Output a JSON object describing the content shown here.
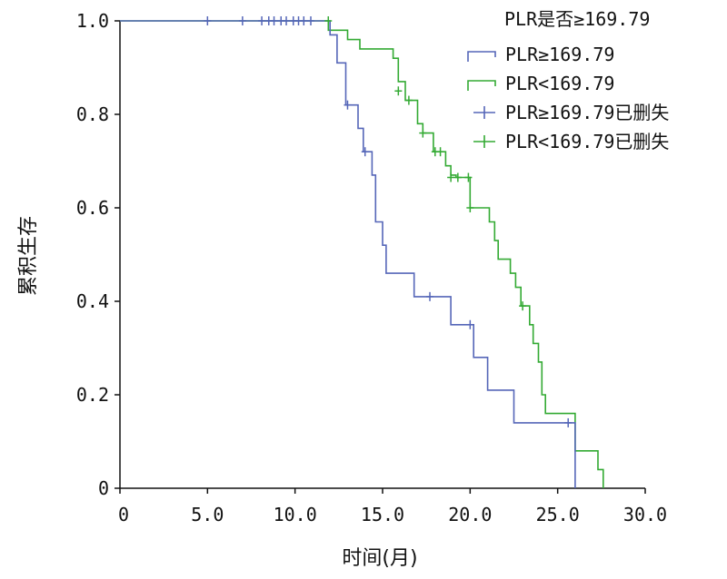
{
  "chart_data": {
    "type": "line",
    "subtype": "kaplan-meier step",
    "title": "",
    "xlabel": "时间(月)",
    "ylabel": "累积生存",
    "xlim": [
      0,
      30
    ],
    "ylim": [
      0,
      1
    ],
    "x_ticks": [
      0,
      5,
      10,
      15,
      20,
      25,
      30
    ],
    "x_tick_labels": [
      "0",
      "5.0",
      "10.0",
      "15.0",
      "20.0",
      "25.0",
      "30.0"
    ],
    "y_ticks": [
      0,
      0.2,
      0.4,
      0.6,
      0.8,
      1.0
    ],
    "y_tick_labels": [
      "0",
      "0.2",
      "0.4",
      "0.6",
      "0.8",
      "1.0"
    ],
    "grid": false,
    "legend": {
      "title": "PLR是否≥169.79",
      "placement": "top-right",
      "entries": [
        {
          "label": "PLR≥169.79",
          "kind": "line",
          "color": "#5566b8"
        },
        {
          "label": "PLR<169.79",
          "kind": "line",
          "color": "#33aa33"
        },
        {
          "label": "PLR≥169.79已删失",
          "kind": "censor",
          "color": "#5566b8"
        },
        {
          "label": "PLR<169.79已删失",
          "kind": "censor",
          "color": "#33aa33"
        }
      ]
    },
    "series": [
      {
        "name": "PLR≥169.79",
        "color": "#5566b8",
        "steps": [
          [
            0,
            1.0
          ],
          [
            12.0,
            1.0
          ],
          [
            12.0,
            0.97
          ],
          [
            12.4,
            0.97
          ],
          [
            12.4,
            0.91
          ],
          [
            12.9,
            0.91
          ],
          [
            12.9,
            0.82
          ],
          [
            13.6,
            0.82
          ],
          [
            13.6,
            0.77
          ],
          [
            13.9,
            0.77
          ],
          [
            13.9,
            0.72
          ],
          [
            14.4,
            0.72
          ],
          [
            14.4,
            0.67
          ],
          [
            14.6,
            0.67
          ],
          [
            14.6,
            0.57
          ],
          [
            15.0,
            0.57
          ],
          [
            15.0,
            0.52
          ],
          [
            15.2,
            0.52
          ],
          [
            15.2,
            0.46
          ],
          [
            16.8,
            0.46
          ],
          [
            16.8,
            0.41
          ],
          [
            18.9,
            0.41
          ],
          [
            18.9,
            0.35
          ],
          [
            20.2,
            0.35
          ],
          [
            20.2,
            0.28
          ],
          [
            21.0,
            0.28
          ],
          [
            21.0,
            0.21
          ],
          [
            22.5,
            0.21
          ],
          [
            22.5,
            0.14
          ],
          [
            26.0,
            0.14
          ],
          [
            26.0,
            0.0
          ]
        ],
        "censored": [
          [
            5.0,
            1.0
          ],
          [
            7.0,
            1.0
          ],
          [
            8.1,
            1.0
          ],
          [
            8.5,
            1.0
          ],
          [
            8.8,
            1.0
          ],
          [
            9.2,
            1.0
          ],
          [
            9.5,
            1.0
          ],
          [
            9.9,
            1.0
          ],
          [
            10.2,
            1.0
          ],
          [
            10.5,
            1.0
          ],
          [
            10.9,
            1.0
          ],
          [
            13.0,
            0.82
          ],
          [
            14.0,
            0.72
          ],
          [
            17.7,
            0.41
          ],
          [
            20.0,
            0.35
          ],
          [
            25.6,
            0.14
          ]
        ]
      },
      {
        "name": "PLR<169.79",
        "color": "#33aa33",
        "steps": [
          [
            0,
            1.0
          ],
          [
            11.9,
            1.0
          ],
          [
            11.9,
            0.98
          ],
          [
            13.0,
            0.98
          ],
          [
            13.0,
            0.96
          ],
          [
            13.7,
            0.96
          ],
          [
            13.7,
            0.94
          ],
          [
            15.6,
            0.94
          ],
          [
            15.6,
            0.92
          ],
          [
            15.9,
            0.92
          ],
          [
            15.9,
            0.87
          ],
          [
            16.3,
            0.87
          ],
          [
            16.3,
            0.83
          ],
          [
            17.0,
            0.83
          ],
          [
            17.0,
            0.78
          ],
          [
            17.3,
            0.78
          ],
          [
            17.3,
            0.76
          ],
          [
            17.9,
            0.76
          ],
          [
            17.9,
            0.72
          ],
          [
            18.6,
            0.72
          ],
          [
            18.6,
            0.69
          ],
          [
            18.9,
            0.69
          ],
          [
            18.9,
            0.67
          ],
          [
            19.2,
            0.67
          ],
          [
            19.2,
            0.665
          ],
          [
            20.0,
            0.665
          ],
          [
            20.0,
            0.6
          ],
          [
            21.1,
            0.6
          ],
          [
            21.1,
            0.57
          ],
          [
            21.4,
            0.57
          ],
          [
            21.4,
            0.53
          ],
          [
            21.6,
            0.53
          ],
          [
            21.6,
            0.49
          ],
          [
            22.3,
            0.49
          ],
          [
            22.3,
            0.46
          ],
          [
            22.6,
            0.46
          ],
          [
            22.6,
            0.43
          ],
          [
            22.9,
            0.43
          ],
          [
            22.9,
            0.39
          ],
          [
            23.4,
            0.39
          ],
          [
            23.4,
            0.35
          ],
          [
            23.6,
            0.35
          ],
          [
            23.6,
            0.31
          ],
          [
            23.9,
            0.31
          ],
          [
            23.9,
            0.27
          ],
          [
            24.1,
            0.27
          ],
          [
            24.1,
            0.2
          ],
          [
            24.3,
            0.2
          ],
          [
            24.3,
            0.16
          ],
          [
            26.0,
            0.16
          ],
          [
            26.0,
            0.08
          ],
          [
            27.3,
            0.08
          ],
          [
            27.3,
            0.04
          ],
          [
            27.6,
            0.04
          ],
          [
            27.6,
            0.0
          ]
        ],
        "censored": [
          [
            11.9,
            1.0
          ],
          [
            15.9,
            0.85
          ],
          [
            16.5,
            0.83
          ],
          [
            17.3,
            0.76
          ],
          [
            18.0,
            0.72
          ],
          [
            18.3,
            0.72
          ],
          [
            18.9,
            0.665
          ],
          [
            19.3,
            0.665
          ],
          [
            19.9,
            0.665
          ],
          [
            20.0,
            0.6
          ],
          [
            23.0,
            0.39
          ]
        ]
      }
    ]
  }
}
